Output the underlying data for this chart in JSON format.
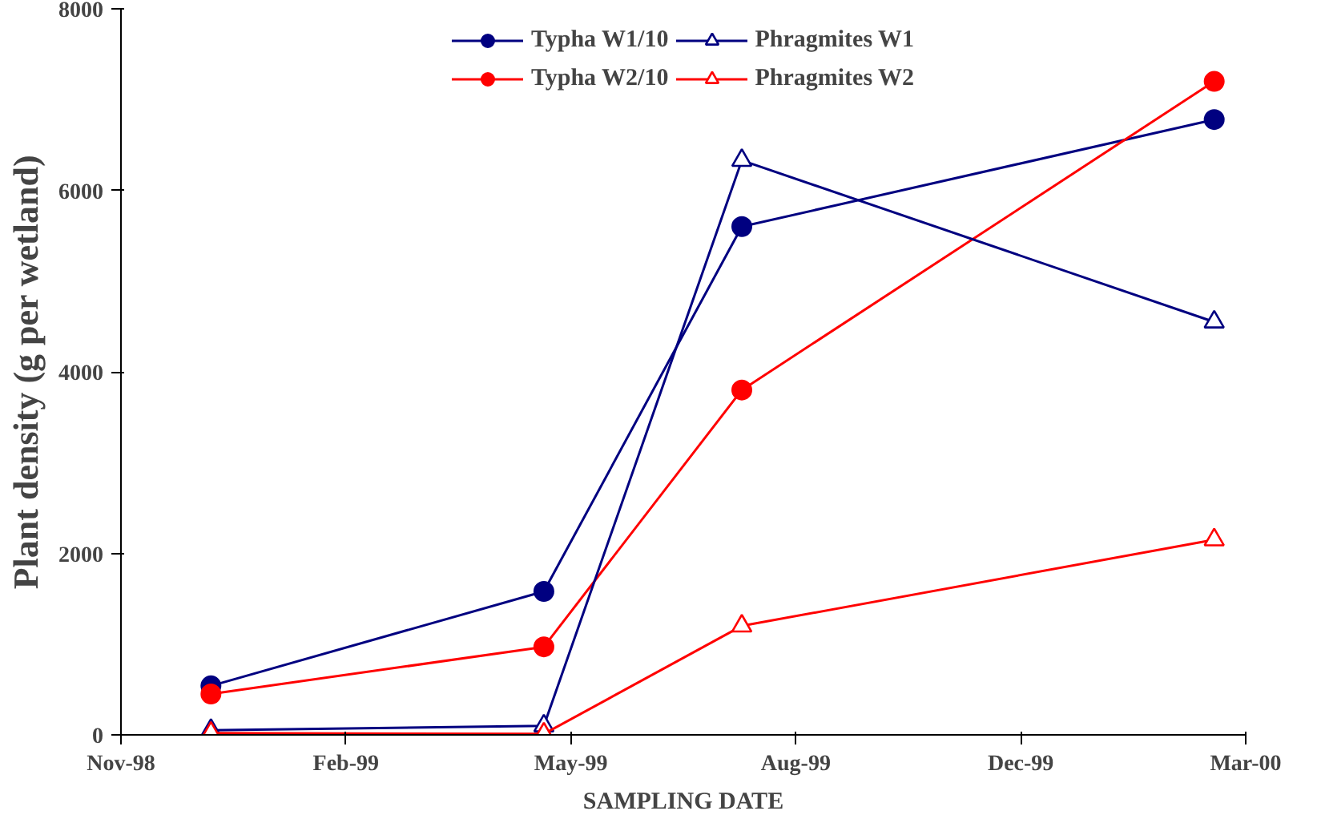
{
  "chart_data": {
    "type": "line",
    "xlabel": "SAMPLING DATE",
    "ylabel": "Plant density (g per wetland)",
    "xlim": [
      "1998-11-01",
      "2000-03-15"
    ],
    "xticks": [
      {
        "value": "1998-11-01",
        "label": "Nov-98"
      },
      {
        "value": "1999-02-09",
        "label": "Feb-99"
      },
      {
        "value": "1999-05-20",
        "label": "May-99"
      },
      {
        "value": "1999-08-28",
        "label": "Aug-99"
      },
      {
        "value": "1999-12-06",
        "label": "Dec-99"
      },
      {
        "value": "2000-03-15",
        "label": "Mar-00"
      }
    ],
    "ylim": [
      0,
      8000
    ],
    "yticks": [
      0,
      2000,
      4000,
      6000,
      8000
    ],
    "grid": false,
    "legend": "top",
    "x": [
      "1998-12-11",
      "1999-05-08",
      "1999-08-04",
      "2000-03-01"
    ],
    "series": [
      {
        "name": "Typha W1/10",
        "color": "#000080",
        "marker": "circle",
        "values": [
          540,
          1580,
          5600,
          6780
        ]
      },
      {
        "name": "Typha W2/10",
        "color": "#ff0000",
        "marker": "circle",
        "values": [
          450,
          970,
          3800,
          7200
        ]
      },
      {
        "name": "Phragmites W1",
        "color": "#000080",
        "marker": "triangle",
        "values": [
          50,
          100,
          6330,
          4550
        ]
      },
      {
        "name": "Phragmites W2",
        "color": "#ff0000",
        "marker": "triangle",
        "values": [
          20,
          10,
          1200,
          2150
        ]
      }
    ]
  }
}
